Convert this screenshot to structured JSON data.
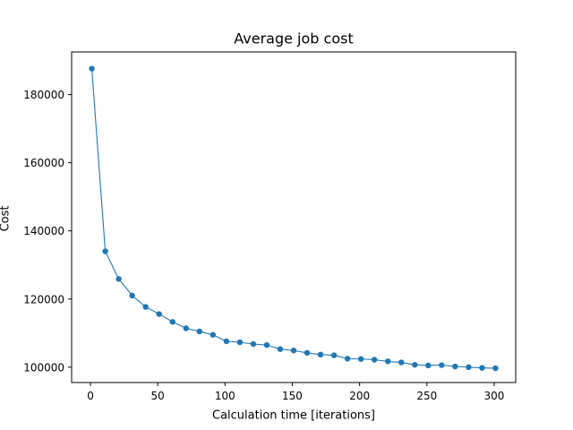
{
  "chart_data": {
    "type": "line",
    "title": "Average job cost",
    "xlabel": "Calculation time [iterations]",
    "ylabel": "Cost",
    "xlim": [
      -14,
      316
    ],
    "ylim": [
      95500,
      192500
    ],
    "xticks": [
      0,
      50,
      100,
      150,
      200,
      250,
      300
    ],
    "yticks": [
      100000,
      120000,
      140000,
      160000,
      180000
    ],
    "grid": false,
    "legend": "none",
    "color": "#1f77b4",
    "series": [
      {
        "x": [
          1,
          11,
          21,
          31,
          41,
          51,
          61,
          71,
          81,
          91,
          101,
          111,
          121,
          131,
          141,
          151,
          161,
          171,
          181,
          191,
          201,
          211,
          221,
          231,
          241,
          251,
          261,
          271,
          281,
          291,
          301
        ],
        "values": [
          187600,
          134000,
          125900,
          121000,
          117700,
          115600,
          113300,
          111400,
          110500,
          109500,
          107600,
          107300,
          106800,
          106500,
          105300,
          104900,
          104200,
          103700,
          103500,
          102500,
          102400,
          102200,
          101700,
          101400,
          100700,
          100500,
          100600,
          100200,
          100000,
          99800,
          99700
        ]
      }
    ]
  }
}
